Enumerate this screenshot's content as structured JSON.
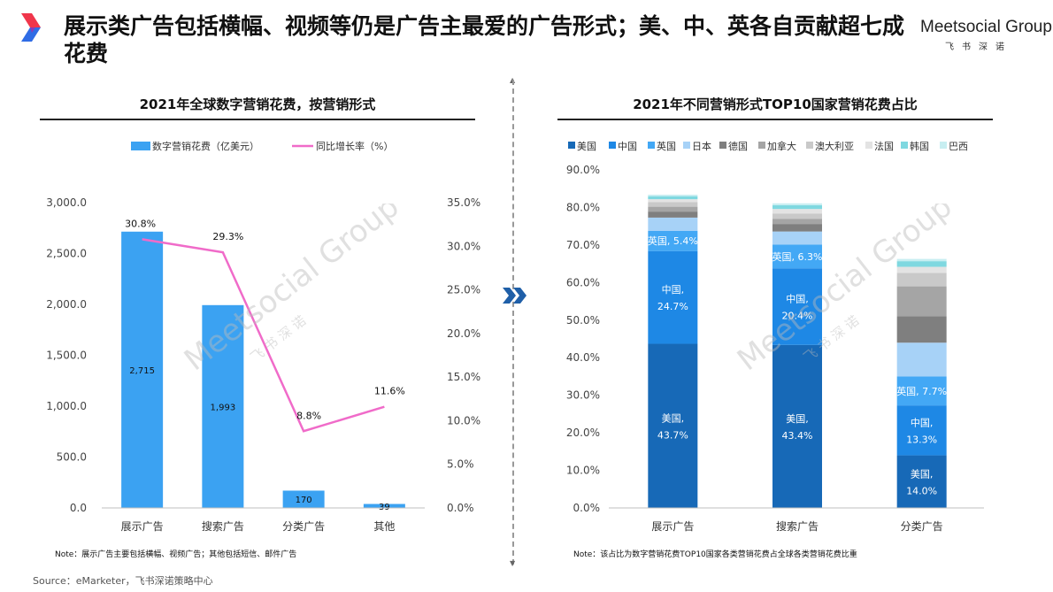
{
  "header": {
    "title": "展示类广告包括横幅、视频等仍是广告主最爱的广告形式；美、中、英各自贡献超七成花费",
    "brand_name": "Meetsocial Group",
    "brand_sub": "飞书深诺"
  },
  "colors": {
    "accent": "#3BA2F2",
    "line": "#F06BC9",
    "logo_red": "#F0364B",
    "logo_blue": "#2F6CE5"
  },
  "watermark": {
    "text": "Meetsocial Group",
    "sub": "飞 书 深 诺"
  },
  "footer": {
    "left_note": "Note：展示广告主要包括横幅、视频广告；其他包括短信、邮件广告",
    "right_note": "Note：该占比为数字营销花费TOP10国家各类营销花费占全球各类营销花费比重",
    "source": "Source：eMarketer，飞书深诺策略中心"
  },
  "chart_data": [
    {
      "type": "bar",
      "title": "2021年全球数字营销花费，按营销形式",
      "categories": [
        "展示广告",
        "搜索广告",
        "分类广告",
        "其他"
      ],
      "series": [
        {
          "name": "数字营销花费（亿美元）",
          "type": "bar",
          "axis": "left",
          "values": [
            2715,
            1993,
            170,
            39
          ],
          "labels": [
            "2,715",
            "1,993",
            "170",
            "39"
          ],
          "color": "#3BA2F2"
        },
        {
          "name": "同比增长率（%）",
          "type": "line",
          "axis": "right",
          "values": [
            30.8,
            29.3,
            8.8,
            11.6
          ],
          "labels": [
            "30.8%",
            "29.3%",
            "8.8%",
            "11.6%"
          ],
          "color": "#F06BC9"
        }
      ],
      "left_axis": {
        "ylim": [
          0,
          3000
        ],
        "ticks": [
          "0.0",
          "500.0",
          "1,000.0",
          "1,500.0",
          "2,000.0",
          "2,500.0",
          "3,000.0"
        ]
      },
      "right_axis": {
        "ylim": [
          0,
          35
        ],
        "ticks": [
          "0.0%",
          "5.0%",
          "10.0%",
          "15.0%",
          "20.0%",
          "25.0%",
          "30.0%",
          "35.0%"
        ]
      },
      "legend": "top",
      "grid": false
    },
    {
      "type": "bar",
      "stacked": true,
      "title": "2021年不同营销形式TOP10国家营销花费占比",
      "categories": [
        "展示广告",
        "搜索广告",
        "分类广告"
      ],
      "series": [
        {
          "name": "美国",
          "color": "#1769B7",
          "values": [
            43.7,
            43.4,
            14.0
          ],
          "labels": [
            "美国,\n43.7%",
            "美国,\n43.4%",
            "美国,\n14.0%"
          ]
        },
        {
          "name": "中国",
          "color": "#1E88E5",
          "values": [
            24.7,
            20.4,
            13.3
          ],
          "labels": [
            "中国,\n24.7%",
            "中国,\n20.4%",
            "中国,\n13.3%"
          ]
        },
        {
          "name": "英国",
          "color": "#43A8F5",
          "values": [
            5.4,
            6.3,
            7.7
          ],
          "labels": [
            "英国, 5.4%",
            "英国, 6.3%",
            "英国, 7.7%"
          ]
        },
        {
          "name": "日本",
          "color": "#A7D2F7",
          "values": [
            3.5,
            3.5,
            9.0
          ],
          "labels": [
            "",
            "",
            ""
          ]
        },
        {
          "name": "德国",
          "color": "#7F7F7F",
          "values": [
            1.6,
            2.0,
            7.0
          ],
          "labels": [
            "",
            "",
            ""
          ]
        },
        {
          "name": "加拿大",
          "color": "#A5A5A5",
          "values": [
            1.3,
            1.4,
            8.0
          ],
          "labels": [
            "",
            "",
            ""
          ]
        },
        {
          "name": "澳大利亚",
          "color": "#C9C9C9",
          "values": [
            1.2,
            1.4,
            3.6
          ],
          "labels": [
            "",
            "",
            ""
          ]
        },
        {
          "name": "法国",
          "color": "#E3E3E3",
          "values": [
            0.8,
            1.2,
            1.6
          ],
          "labels": [
            "",
            "",
            ""
          ]
        },
        {
          "name": "韩国",
          "color": "#7FD8E0",
          "values": [
            0.8,
            1.0,
            1.5
          ],
          "labels": [
            "",
            "",
            ""
          ]
        },
        {
          "name": "巴西",
          "color": "#C7EEF1",
          "values": [
            0.4,
            0.5,
            0.6
          ],
          "labels": [
            "",
            "",
            ""
          ]
        }
      ],
      "ylim": [
        0,
        90
      ],
      "ticks": [
        "0.0%",
        "10.0%",
        "20.0%",
        "30.0%",
        "40.0%",
        "50.0%",
        "60.0%",
        "70.0%",
        "80.0%",
        "90.0%"
      ],
      "legend": "top",
      "grid": false
    }
  ]
}
